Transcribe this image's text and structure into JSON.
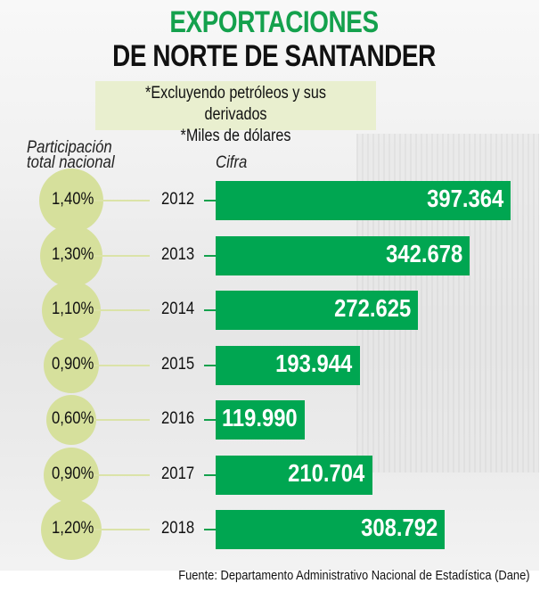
{
  "title_line1": "EXPORTACIONES",
  "title_line2": "DE NORTE DE SANTANDER",
  "notes": [
    "*Excluyendo petróleos y sus derivados",
    "*Miles de dólares"
  ],
  "labels": {
    "participacion": [
      "Participación",
      "total nacional"
    ],
    "cifra": "Cifra"
  },
  "source": "Fuente: Departamento Administrativo Nacional de Estadística (Dane)",
  "colors": {
    "bar": "#00a651",
    "title_accent": "#14a14d",
    "circle": "#d6e09c",
    "note_bg": "#e9efcf"
  },
  "chart_data": {
    "type": "bar",
    "orientation": "horizontal",
    "title": "EXPORTACIONES DE NORTE DE SANTANDER",
    "subtitle": "*Excluyendo petróleos y sus derivados / *Miles de dólares",
    "categories": [
      "2012",
      "2013",
      "2014",
      "2015",
      "2016",
      "2017",
      "2018"
    ],
    "series": [
      {
        "name": "Cifra",
        "values": [
          397364,
          342678,
          272625,
          193944,
          119990,
          210704,
          308792
        ],
        "labels": [
          "397.364",
          "342.678",
          "272.625",
          "193.944",
          "119.990",
          "210.704",
          "308.792"
        ]
      },
      {
        "name": "Participación total nacional",
        "values": [
          1.4,
          1.3,
          1.1,
          0.9,
          0.6,
          0.9,
          1.2
        ],
        "labels": [
          "1,40%",
          "1,30%",
          "1,10%",
          "0,90%",
          "0,60%",
          "0,90%",
          "1,20%"
        ]
      }
    ],
    "xlabel": "",
    "ylabel": "",
    "xlim": [
      0,
      400000
    ],
    "grid": false,
    "legend": "none",
    "source": "Fuente: Departamento Administrativo Nacional de Estadística (Dane)"
  }
}
